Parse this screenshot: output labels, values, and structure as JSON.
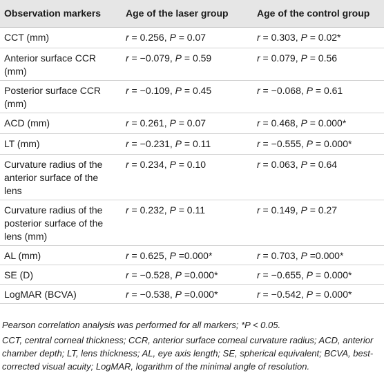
{
  "table": {
    "headers": [
      "Observation markers",
      "Age of the laser group",
      "Age of the control group"
    ],
    "rows": [
      {
        "marker": "CCT (mm)",
        "laser": {
          "r": "0.256",
          "p": "0.07",
          "sep": " = ",
          "star": ""
        },
        "control": {
          "r": "0.303",
          "p": "0.02",
          "sep": " = ",
          "star": "*"
        }
      },
      {
        "marker": "Anterior surface CCR (mm)",
        "laser": {
          "r": "−0.079",
          "p": "0.59",
          "sep": " = ",
          "star": ""
        },
        "control": {
          "r": "0.079",
          "p": "0.56",
          "sep": " = ",
          "star": ""
        }
      },
      {
        "marker": "Posterior surface CCR (mm)",
        "laser": {
          "r": "−0.109",
          "p": "0.45",
          "sep": " = ",
          "star": ""
        },
        "control": {
          "r": "−0.068",
          "p": "0.61",
          "sep": " = ",
          "star": ""
        }
      },
      {
        "marker": "ACD (mm)",
        "laser": {
          "r": "0.261",
          "p": "0.07",
          "sep": " = ",
          "star": ""
        },
        "control": {
          "r": "0.468",
          "p": "0.000",
          "sep": " = ",
          "star": "*"
        }
      },
      {
        "marker": "LT (mm)",
        "laser": {
          "r": "−0.231",
          "p": "0.11",
          "sep": " = ",
          "star": ""
        },
        "control": {
          "r": "−0.555",
          "p": "0.000",
          "sep": " = ",
          "star": "*"
        }
      },
      {
        "marker": "Curvature radius of the anterior surface of the lens",
        "laser": {
          "r": "0.234",
          "p": "0.10",
          "sep": " = ",
          "star": ""
        },
        "control": {
          "r": "0.063",
          "p": "0.64",
          "sep": " = ",
          "star": ""
        }
      },
      {
        "marker": "Curvature radius of the posterior surface of the lens (mm)",
        "laser": {
          "r": "0.232",
          "p": "0.11",
          "sep": " = ",
          "star": ""
        },
        "control": {
          "r": "0.149",
          "p": "0.27",
          "sep": " = ",
          "star": ""
        }
      },
      {
        "marker": "AL (mm)",
        "laser": {
          "r": "0.625",
          "p": "0.000",
          "sep": " =",
          "star": "*"
        },
        "control": {
          "r": "0.703",
          "p": "0.000",
          "sep": " =",
          "star": "*"
        }
      },
      {
        "marker": "SE (D)",
        "laser": {
          "r": "−0.528",
          "p": "0.000",
          "sep": " =",
          "star": "*"
        },
        "control": {
          "r": "−0.655",
          "p": "0.000",
          "sep": " = ",
          "star": "*"
        }
      },
      {
        "marker": "LogMAR (BCVA)",
        "laser": {
          "r": "−0.538",
          "p": "0.000",
          "sep": " =",
          "star": "*"
        },
        "control": {
          "r": "−0.542",
          "p": "0.000",
          "sep": " = ",
          "star": "*"
        }
      }
    ]
  },
  "footnotes": {
    "line1": "Pearson correlation analysis was performed for all markers; *P < 0.05.",
    "line2": "CCT, central corneal thickness; CCR, anterior surface corneal curvature radius; ACD, anterior chamber depth; LT, lens thickness; AL, eye axis length; SE, spherical equivalent; BCVA, best-corrected visual acuity; LogMAR, logarithm of the minimal angle of resolution."
  }
}
